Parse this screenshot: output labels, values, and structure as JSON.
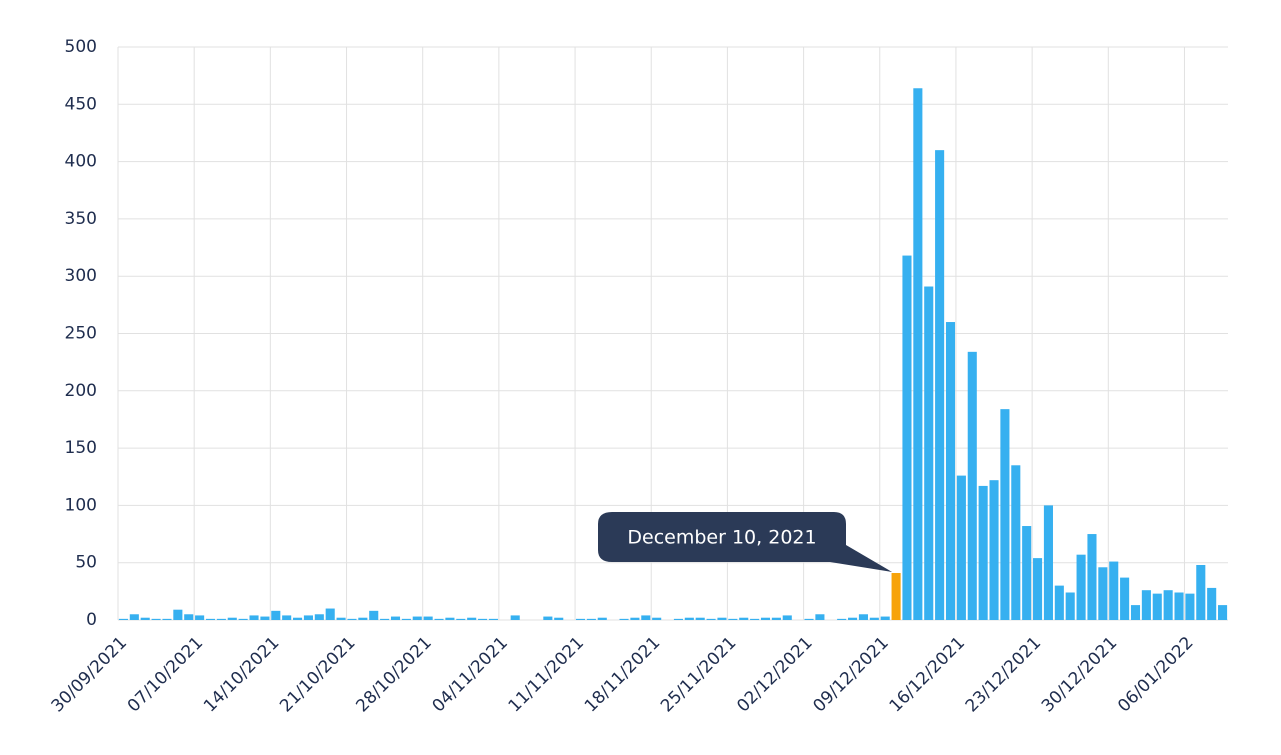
{
  "chart_data": {
    "type": "bar",
    "categories": [
      "30/09/2021",
      null,
      null,
      null,
      null,
      null,
      null,
      "07/10/2021",
      null,
      null,
      null,
      null,
      null,
      null,
      "14/10/2021",
      null,
      null,
      null,
      null,
      null,
      null,
      "21/10/2021",
      null,
      null,
      null,
      null,
      null,
      null,
      "28/10/2021",
      null,
      null,
      null,
      null,
      null,
      null,
      "04/11/2021",
      null,
      null,
      null,
      null,
      null,
      null,
      "11/11/2021",
      null,
      null,
      null,
      null,
      null,
      null,
      "18/11/2021",
      null,
      null,
      null,
      null,
      null,
      null,
      "25/11/2021",
      null,
      null,
      null,
      null,
      null,
      null,
      "02/12/2021",
      null,
      null,
      null,
      null,
      null,
      null,
      "09/12/2021",
      null,
      null,
      null,
      null,
      null,
      null,
      "16/12/2021",
      null,
      null,
      null,
      null,
      null,
      null,
      "23/12/2021",
      null,
      null,
      null,
      null,
      null,
      null,
      "30/12/2021",
      null,
      null,
      null,
      null,
      null,
      null,
      "06/01/2022",
      null,
      null,
      null
    ],
    "values": [
      1,
      5,
      2,
      1,
      1,
      9,
      5,
      4,
      1,
      1,
      2,
      1,
      4,
      3,
      8,
      4,
      2,
      4,
      5,
      10,
      2,
      1,
      2,
      8,
      1,
      3,
      1,
      3,
      3,
      1,
      2,
      1,
      2,
      1,
      1,
      0,
      4,
      0,
      0,
      3,
      2,
      0,
      1,
      1,
      2,
      0,
      1,
      2,
      4,
      2,
      0,
      1,
      2,
      2,
      1,
      2,
      1,
      2,
      1,
      2,
      2,
      4,
      0,
      1,
      5,
      0,
      1,
      2,
      5,
      2,
      3,
      41,
      318,
      464,
      291,
      410,
      260,
      126,
      234,
      117,
      122,
      184,
      135,
      82,
      54,
      100,
      30,
      24,
      57,
      75,
      46,
      51,
      37,
      13,
      26,
      23,
      26,
      24,
      23,
      48,
      28,
      13
    ],
    "color": "#36b0f0",
    "highlight_color": "#f7a30a",
    "annotation": {
      "text": "December 10, 2021",
      "index": 71
    },
    "ylim": [
      0,
      500
    ],
    "yticks": [
      0,
      50,
      100,
      150,
      200,
      250,
      300,
      350,
      400,
      450,
      500
    ],
    "grid": true
  }
}
